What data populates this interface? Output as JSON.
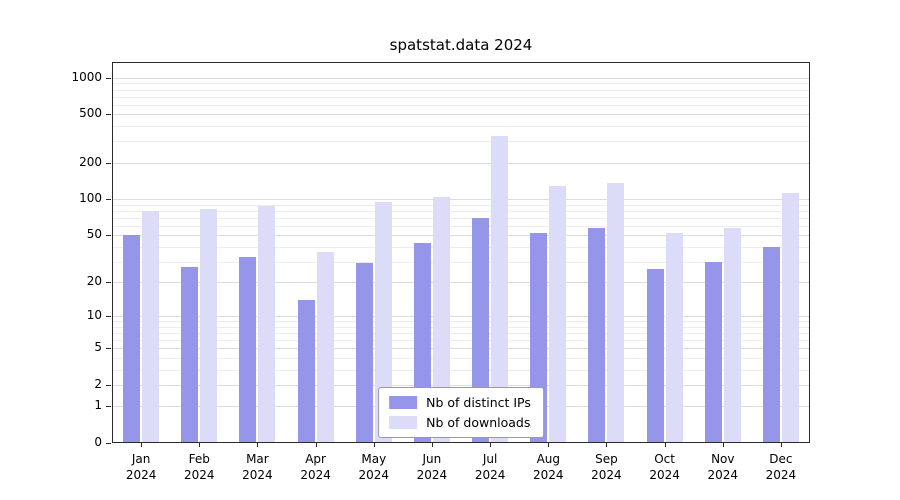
{
  "chart_data": {
    "type": "bar",
    "title": "spatstat.data 2024",
    "categories": [
      "Jan",
      "Feb",
      "Mar",
      "Apr",
      "May",
      "Jun",
      "Jul",
      "Aug",
      "Sep",
      "Oct",
      "Nov",
      "Dec"
    ],
    "year_label": "2024",
    "series": [
      {
        "name": "Nb of distinct IPs",
        "color": "#9595ea",
        "values": [
          50,
          27,
          33,
          14,
          29,
          43,
          70,
          52,
          57,
          26,
          30,
          40
        ]
      },
      {
        "name": "Nb of downloads",
        "color": "#dcdcf9",
        "values": [
          80,
          83,
          88,
          36,
          95,
          105,
          330,
          128,
          135,
          52,
          58,
          112
        ]
      }
    ],
    "xlabel": "",
    "ylabel": "",
    "y_axis": {
      "scale": "log10(x+1)",
      "ticks": [
        0,
        1,
        2,
        5,
        10,
        20,
        50,
        100,
        200,
        500,
        1000
      ],
      "minor_ticks": [
        3,
        4,
        6,
        7,
        8,
        9,
        30,
        40,
        60,
        70,
        80,
        90,
        300,
        400,
        600,
        700,
        800,
        900
      ],
      "top_value": 1350
    },
    "grid": "horizontal",
    "legend_position": "inside-bottom-center",
    "colors": {
      "major_grid": "#dcdcdc",
      "minor_grid": "#ededed",
      "frame": "#2b2b2b",
      "background": "#ffffff"
    }
  }
}
